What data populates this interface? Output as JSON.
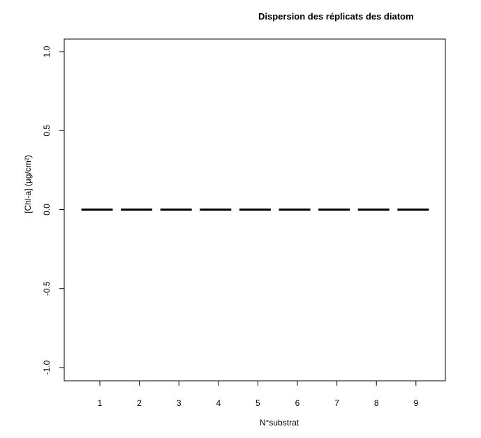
{
  "chart_data": {
    "type": "boxplot",
    "title": "Dispersion des réplicats des diatom",
    "xlabel": "N°substrat",
    "ylabel": "[Chl-a] (µg/cm²)",
    "categories": [
      "1",
      "2",
      "3",
      "4",
      "5",
      "6",
      "7",
      "8",
      "9"
    ],
    "values": [
      0,
      0,
      0,
      0,
      0,
      0,
      0,
      0,
      0
    ],
    "ylim": [
      -1.0,
      1.0
    ],
    "yticks": [
      "-1.0",
      "-0.5",
      "0.0",
      "0.5",
      "1.0"
    ],
    "grid": false,
    "legend": "none"
  }
}
